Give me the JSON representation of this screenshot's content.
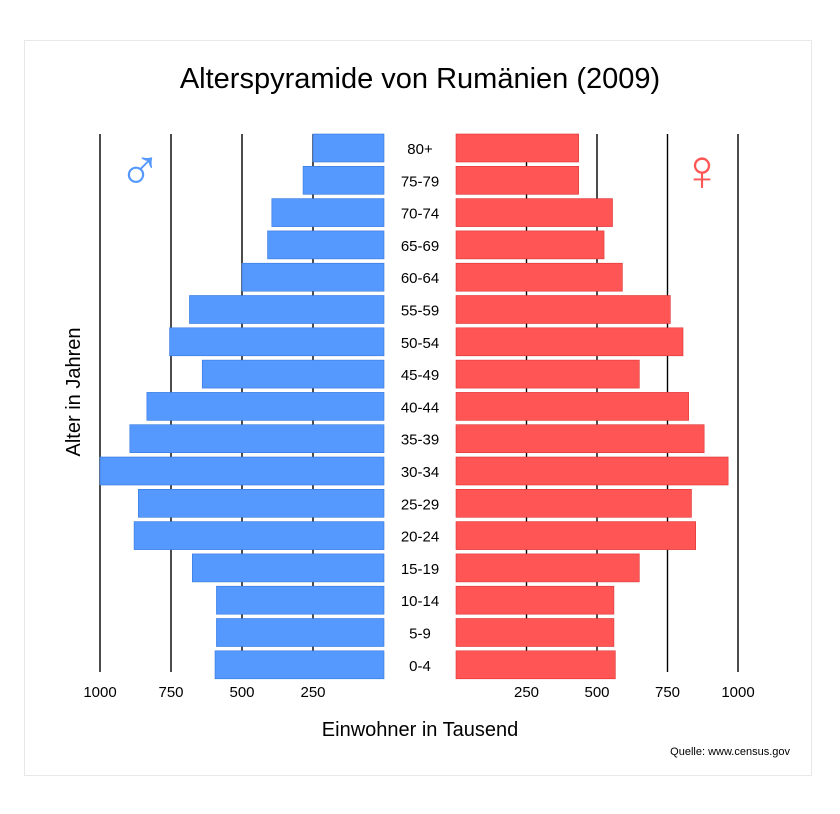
{
  "chart_data": {
    "type": "bar",
    "orientation": "horizontal-pyramid",
    "title": "Alterspyramide von Rumänien (2009)",
    "xlabel": "Einwohner in Tausend",
    "ylabel": "Alter in Jahren",
    "source": "Quelle: www.census.gov",
    "xlim": [
      0,
      1000
    ],
    "grid": true,
    "categories": [
      "80+",
      "75-79",
      "70-74",
      "65-69",
      "60-64",
      "55-59",
      "50-54",
      "45-49",
      "40-44",
      "35-39",
      "30-34",
      "25-29",
      "20-24",
      "15-19",
      "10-14",
      "5-9",
      "0-4"
    ],
    "series": [
      {
        "symbol": "♂",
        "color": "#5599ff",
        "values": [
          250,
          285,
          395,
          410,
          500,
          685,
          755,
          640,
          835,
          895,
          1000,
          865,
          880,
          675,
          590,
          590,
          595
        ]
      },
      {
        "symbol": "♀",
        "color": "#ff5555",
        "values": [
          435,
          435,
          555,
          525,
          590,
          760,
          805,
          650,
          825,
          880,
          965,
          835,
          850,
          650,
          560,
          560,
          565
        ]
      }
    ],
    "left_ticks": [
      "1000",
      "750",
      "500",
      "250"
    ],
    "left_tick_values": [
      1000,
      750,
      500,
      250
    ],
    "right_ticks": [
      "250",
      "500",
      "750",
      "1000"
    ],
    "right_tick_values": [
      250,
      500,
      750,
      1000
    ]
  }
}
